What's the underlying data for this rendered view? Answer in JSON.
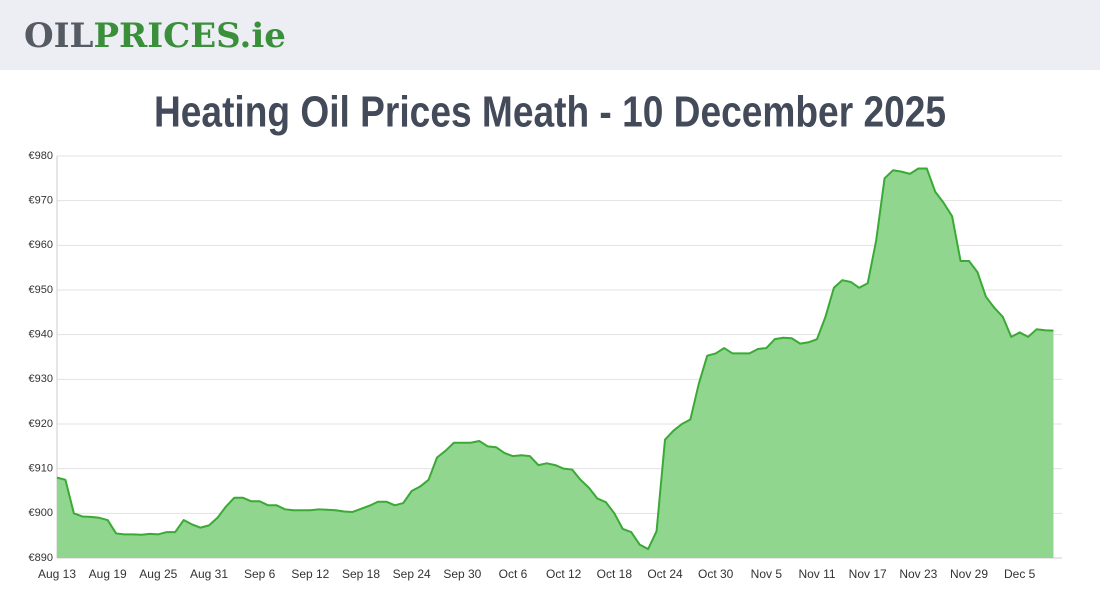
{
  "header": {
    "logo": [
      "OIL",
      "PRICES.ie"
    ]
  },
  "chart_data": {
    "type": "area",
    "title": "Heating Oil Prices Meath - 10 December 2025",
    "categories": [
      "Aug 13",
      null,
      null,
      null,
      null,
      null,
      "Aug 19",
      null,
      null,
      null,
      null,
      null,
      "Aug 25",
      null,
      null,
      null,
      null,
      null,
      "Aug 31",
      null,
      null,
      null,
      null,
      null,
      "Sep 6",
      null,
      null,
      null,
      null,
      null,
      "Sep 12",
      null,
      null,
      null,
      null,
      null,
      "Sep 18",
      null,
      null,
      null,
      null,
      null,
      "Sep 24",
      null,
      null,
      null,
      null,
      null,
      "Sep 30",
      null,
      null,
      null,
      null,
      null,
      "Oct 6",
      null,
      null,
      null,
      null,
      null,
      "Oct 12",
      null,
      null,
      null,
      null,
      null,
      "Oct 18",
      null,
      null,
      null,
      null,
      null,
      "Oct 24",
      null,
      null,
      null,
      null,
      null,
      "Oct 30",
      null,
      null,
      null,
      null,
      null,
      "Nov 5",
      null,
      null,
      null,
      null,
      null,
      "Nov 11",
      null,
      null,
      null,
      null,
      null,
      "Nov 17",
      null,
      null,
      null,
      null,
      null,
      "Nov 23",
      null,
      null,
      null,
      null,
      null,
      "Nov 29",
      null,
      null,
      null,
      null,
      null,
      "Dec 5",
      null,
      null,
      null,
      null
    ],
    "values": [
      908,
      907.5,
      900,
      899.3,
      899.2,
      899,
      898.5,
      895.5,
      895.3,
      895.3,
      895.2,
      895.4,
      895.3,
      895.8,
      895.8,
      898.5,
      897.5,
      896.8,
      897.3,
      899,
      901.5,
      903.5,
      903.5,
      902.7,
      902.7,
      901.8,
      901.8,
      900.9,
      900.7,
      900.7,
      900.7,
      900.9,
      900.8,
      900.7,
      900.4,
      900.3,
      901,
      901.7,
      902.6,
      902.6,
      901.8,
      902.3,
      905,
      906,
      907.5,
      912.5,
      914,
      915.8,
      915.8,
      915.8,
      916.2,
      915,
      914.8,
      913.5,
      912.8,
      913,
      912.8,
      910.8,
      911.2,
      910.8,
      910,
      909.8,
      907.5,
      905.7,
      903.3,
      902.5,
      900,
      896.5,
      895.8,
      893,
      892,
      896,
      916.5,
      918.5,
      920,
      921,
      929,
      935.3,
      935.8,
      937,
      935.8,
      935.8,
      935.8,
      936.8,
      937,
      939,
      939.3,
      939.2,
      938,
      938.3,
      939,
      944,
      950.5,
      952.2,
      951.8,
      950.5,
      951.5,
      961,
      975,
      976.8,
      976.5,
      976,
      977.2,
      977.2,
      972,
      969.5,
      966.5,
      956.5,
      956.5,
      954,
      948.5,
      946,
      944,
      939.5,
      940.5,
      939.5,
      941.2,
      941,
      940.9
    ],
    "color": "#3aaa35",
    "ylim": [
      890,
      980
    ],
    "yticks": [
      {
        "value": 890,
        "label": "€890"
      },
      {
        "value": 900,
        "label": "€900"
      },
      {
        "value": 910,
        "label": "€910"
      },
      {
        "value": 920,
        "label": "€920"
      },
      {
        "value": 930,
        "label": "€930"
      },
      {
        "value": 940,
        "label": "€940"
      },
      {
        "value": 950,
        "label": "€950"
      },
      {
        "value": 960,
        "label": "€960"
      },
      {
        "value": 970,
        "label": "€970"
      },
      {
        "value": 980,
        "label": "€980"
      }
    ],
    "grid": true
  }
}
